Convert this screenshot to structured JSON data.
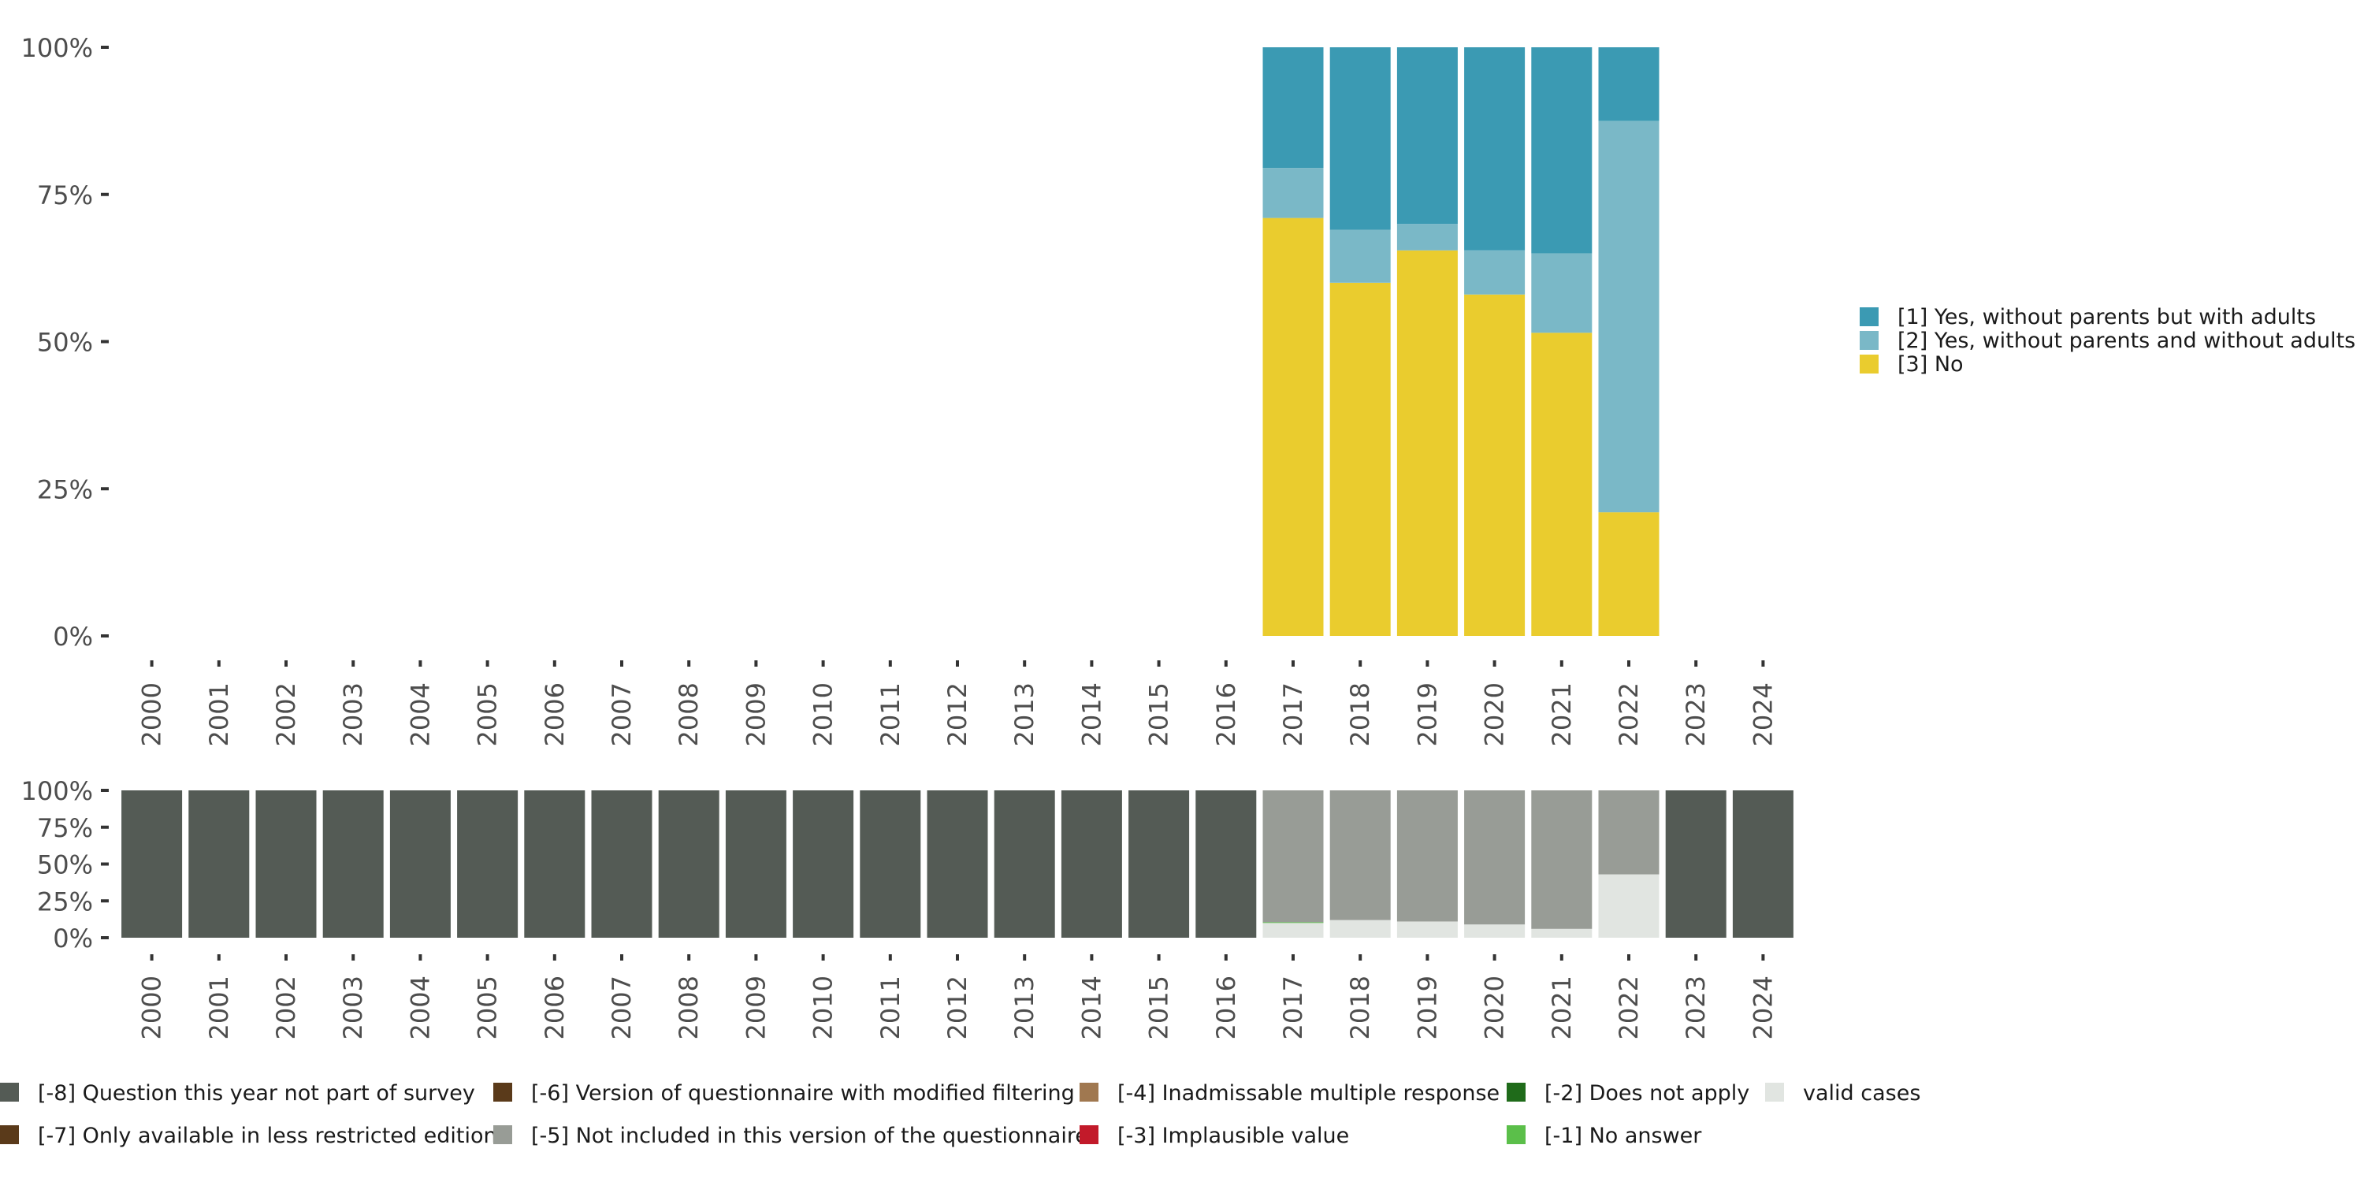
{
  "chart_data": [
    {
      "type": "bar",
      "stacked": true,
      "categories": [
        "2000",
        "2001",
        "2002",
        "2003",
        "2004",
        "2005",
        "2006",
        "2007",
        "2008",
        "2009",
        "2010",
        "2011",
        "2012",
        "2013",
        "2014",
        "2015",
        "2016",
        "2017",
        "2018",
        "2019",
        "2020",
        "2021",
        "2022",
        "2023",
        "2024"
      ],
      "ylim": [
        0,
        100
      ],
      "yticks": [
        "0%",
        "25%",
        "50%",
        "75%",
        "100%"
      ],
      "legend_position": "right",
      "grid": false,
      "series": [
        {
          "name": "[3] No",
          "color": "#EACC2E",
          "values": [
            null,
            null,
            null,
            null,
            null,
            null,
            null,
            null,
            null,
            null,
            null,
            null,
            null,
            null,
            null,
            null,
            null,
            71,
            60,
            65.5,
            58,
            51.5,
            21,
            null,
            null
          ]
        },
        {
          "name": "[2] Yes, without parents and without adults",
          "color": "#7AB8C7",
          "values": [
            null,
            null,
            null,
            null,
            null,
            null,
            null,
            null,
            null,
            null,
            null,
            null,
            null,
            null,
            null,
            null,
            null,
            8.5,
            9,
            4.5,
            7.5,
            13.5,
            66.5,
            null,
            null
          ]
        },
        {
          "name": "[1] Yes, without parents but with adults",
          "color": "#3B9AB3",
          "values": [
            null,
            null,
            null,
            null,
            null,
            null,
            null,
            null,
            null,
            null,
            null,
            null,
            null,
            null,
            null,
            null,
            null,
            20.5,
            31,
            30,
            34.5,
            35,
            12.5,
            null,
            null
          ]
        }
      ]
    },
    {
      "type": "bar",
      "stacked": true,
      "categories": [
        "2000",
        "2001",
        "2002",
        "2003",
        "2004",
        "2005",
        "2006",
        "2007",
        "2008",
        "2009",
        "2010",
        "2011",
        "2012",
        "2013",
        "2014",
        "2015",
        "2016",
        "2017",
        "2018",
        "2019",
        "2020",
        "2021",
        "2022",
        "2023",
        "2024"
      ],
      "ylim": [
        0,
        100
      ],
      "yticks": [
        "0%",
        "25%",
        "50%",
        "75%",
        "100%"
      ],
      "legend_position": "bottom",
      "series": [
        {
          "name": "valid cases",
          "color": "#E1E5E1",
          "values": [
            0,
            0,
            0,
            0,
            0,
            0,
            0,
            0,
            0,
            0,
            0,
            0,
            0,
            0,
            0,
            0,
            0,
            10,
            12,
            11,
            9,
            6,
            43,
            0,
            0
          ]
        },
        {
          "name": "[-1] No answer",
          "color": "#5BBF4A",
          "values": [
            0,
            0,
            0,
            0,
            0,
            0,
            0,
            0,
            0,
            0,
            0,
            0,
            0,
            0,
            0,
            0,
            0,
            0.5,
            0,
            0,
            0,
            0,
            0,
            0,
            0
          ]
        },
        {
          "name": "[-5] Not included in this version of the questionnaire",
          "color": "#989C96",
          "values": [
            0,
            0,
            0,
            0,
            0,
            0,
            0,
            0,
            0,
            0,
            0,
            0,
            0,
            0,
            0,
            0,
            0,
            89.5,
            88,
            89,
            91,
            94,
            57,
            0,
            0
          ]
        },
        {
          "name": "[-8] Question this year not part of survey",
          "color": "#545B55",
          "values": [
            100,
            100,
            100,
            100,
            100,
            100,
            100,
            100,
            100,
            100,
            100,
            100,
            100,
            100,
            100,
            100,
            100,
            0,
            0,
            0,
            0,
            0,
            0,
            100,
            100
          ]
        }
      ]
    }
  ],
  "legend_top": [
    {
      "label": "[1] Yes, without parents but with adults",
      "color": "#3B9AB3"
    },
    {
      "label": "[2] Yes, without parents and without adults",
      "color": "#7AB8C7"
    },
    {
      "label": "[3] No",
      "color": "#EACC2E"
    }
  ],
  "legend_bottom": [
    {
      "label": "[-8] Question this year not part of survey",
      "color": "#545B55"
    },
    {
      "label": "[-7] Only available in less restricted edition",
      "color": "#5A3A1A"
    },
    {
      "label": "[-6] Version of questionnaire with modified filtering",
      "color": "#5A3A1A"
    },
    {
      "label": "[-5] Not included in this version of the questionnaire",
      "color": "#989C96"
    },
    {
      "label": "[-4] Inadmissable multiple response",
      "color": "#A07850"
    },
    {
      "label": "[-3] Implausible value",
      "color": "#C21A2A"
    },
    {
      "label": "[-2] Does not apply",
      "color": "#1F6B1A"
    },
    {
      "label": "[-1] No answer",
      "color": "#5BBF4A"
    },
    {
      "label": "valid cases",
      "color": "#E1E5E1"
    }
  ]
}
